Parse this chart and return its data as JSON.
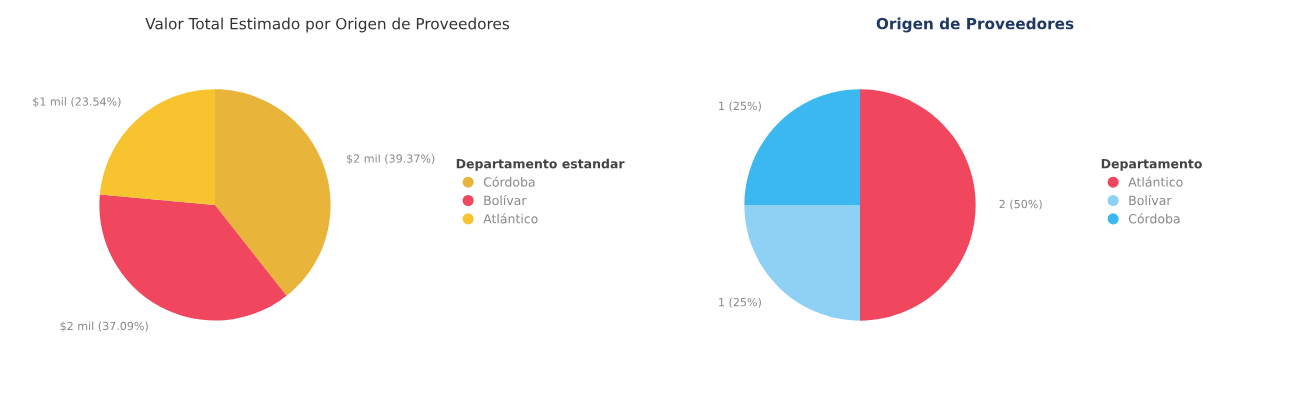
{
  "chart_data": [
    {
      "type": "pie",
      "title": "Valor Total Estimado por Origen de Proveedores",
      "legend_title": "Departamento estandar",
      "legend": "right",
      "categories": [
        "Córdoba",
        "Bolívar",
        "Atlántico"
      ],
      "values": [
        39.37,
        37.09,
        23.54
      ],
      "colors": [
        "#e8b43a",
        "#f0475e",
        "#f7c430"
      ],
      "value_labels": [
        "$2 mil (39.37%)",
        "$2 mil (37.09%)",
        "$1 mil (23.54%)"
      ]
    },
    {
      "type": "pie",
      "title": "Origen de Proveedores",
      "legend_title": "Departamento",
      "legend": "right",
      "categories": [
        "Atlántico",
        "Bolívar",
        "Córdoba"
      ],
      "values": [
        2,
        1,
        1
      ],
      "colors": [
        "#f0475e",
        "#8fd0f5",
        "#3bb8f0"
      ],
      "value_labels": [
        "2 (50%)",
        "1 (25%)",
        "1 (25%)"
      ]
    }
  ]
}
